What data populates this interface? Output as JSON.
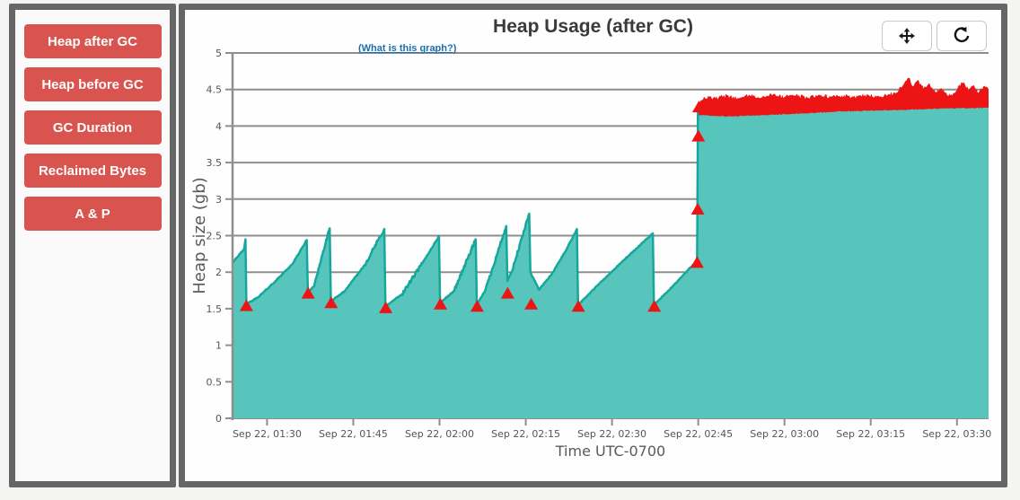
{
  "sidebar": {
    "button_color": "#d9534f",
    "buttons": [
      {
        "label": "Heap after GC"
      },
      {
        "label": "Heap before GC"
      },
      {
        "label": "GC Duration"
      },
      {
        "label": "Reclaimed Bytes"
      },
      {
        "label": "A & P"
      }
    ]
  },
  "toolbar": {
    "pan_icon": "move-arrows",
    "refresh_icon": "refresh-arrow"
  },
  "chart_data": {
    "type": "area",
    "title": "Heap Usage (after GC)",
    "help_link": "(What is this graph?)",
    "xlabel": "Time UTC-0700",
    "ylabel": "Heap size (gb)",
    "ylim": [
      0,
      5
    ],
    "yticks": [
      0,
      0.5,
      1,
      1.5,
      2,
      2.5,
      3,
      3.5,
      4,
      4.5,
      5
    ],
    "x_domain_minutes": [
      84,
      215.5
    ],
    "xticks": [
      {
        "minute": 90,
        "label": "Sep 22, 01:30"
      },
      {
        "minute": 105,
        "label": "Sep 22, 01:45"
      },
      {
        "minute": 120,
        "label": "Sep 22, 02:00"
      },
      {
        "minute": 135,
        "label": "Sep 22, 02:15"
      },
      {
        "minute": 150,
        "label": "Sep 22, 02:30"
      },
      {
        "minute": 165,
        "label": "Sep 22, 02:45"
      },
      {
        "minute": 180,
        "label": "Sep 22, 03:00"
      },
      {
        "minute": 195,
        "label": "Sep 22, 03:15"
      },
      {
        "minute": 210,
        "label": "Sep 22, 03:30"
      }
    ],
    "grid": true,
    "grid_color": "#8e8e8e",
    "series": [
      {
        "name": "heap-after-gc",
        "fill_color": "#58c5bd",
        "line_color": "#16a79c",
        "anchors_time_gb": [
          [
            84.0,
            2.13
          ],
          [
            84.6,
            2.19
          ],
          [
            85.3,
            2.25
          ],
          [
            86.0,
            2.31
          ],
          [
            86.25,
            2.45
          ],
          [
            86.4,
            1.56
          ],
          [
            88.5,
            1.66
          ],
          [
            91.5,
            1.88
          ],
          [
            94.5,
            2.12
          ],
          [
            96.9,
            2.44
          ],
          [
            97.1,
            1.73
          ],
          [
            98.1,
            1.8
          ],
          [
            100.9,
            2.6
          ],
          [
            101.1,
            1.6
          ],
          [
            103.5,
            1.74
          ],
          [
            107.0,
            2.1
          ],
          [
            110.4,
            2.59
          ],
          [
            110.6,
            1.53
          ],
          [
            113.5,
            1.7
          ],
          [
            117.0,
            2.12
          ],
          [
            119.9,
            2.49
          ],
          [
            120.1,
            1.58
          ],
          [
            122.5,
            1.74
          ],
          [
            126.3,
            2.45
          ],
          [
            126.5,
            1.55
          ],
          [
            128.0,
            1.76
          ],
          [
            131.6,
            2.63
          ],
          [
            131.8,
            1.88
          ],
          [
            132.6,
            2.01
          ],
          [
            135.6,
            2.8
          ],
          [
            135.8,
            2.0
          ],
          [
            136.7,
            1.86
          ],
          [
            137.3,
            1.76
          ],
          [
            139.5,
            1.97
          ],
          [
            142.0,
            2.3
          ],
          [
            143.9,
            2.59
          ],
          [
            144.1,
            1.55
          ],
          [
            147.5,
            1.82
          ],
          [
            152.0,
            2.16
          ],
          [
            157.1,
            2.53
          ],
          [
            157.3,
            1.55
          ],
          [
            160.0,
            1.76
          ],
          [
            163.0,
            2.01
          ],
          [
            164.8,
            2.16
          ],
          [
            164.95,
            4.2
          ],
          [
            170,
            4.18
          ],
          [
            180,
            4.21
          ],
          [
            190,
            4.25
          ],
          [
            200,
            4.27
          ],
          [
            208,
            4.29
          ],
          [
            215.5,
            4.3
          ]
        ]
      }
    ],
    "gc_markers": {
      "name": "gc-event-triangles",
      "color": "#ec1414",
      "points_time_gb": [
        [
          86.4,
          1.53
        ],
        [
          97.15,
          1.7
        ],
        [
          101.15,
          1.57
        ],
        [
          110.65,
          1.5
        ],
        [
          120.15,
          1.55
        ],
        [
          126.55,
          1.52
        ],
        [
          131.85,
          1.7
        ],
        [
          135.95,
          1.55
        ],
        [
          144.15,
          1.52
        ],
        [
          157.35,
          1.52
        ],
        [
          164.8,
          2.12
        ],
        [
          164.92,
          2.85
        ],
        [
          165.02,
          3.85
        ],
        [
          165.12,
          4.25
        ]
      ]
    },
    "dense_marker_band": {
      "name": "dense-gc-marker-band",
      "color": "#ec1414",
      "top_anchors_time_gb": [
        [
          165.15,
          4.3
        ],
        [
          166,
          4.4
        ],
        [
          168,
          4.38
        ],
        [
          170,
          4.42
        ],
        [
          172,
          4.38
        ],
        [
          174,
          4.42
        ],
        [
          176,
          4.39
        ],
        [
          178,
          4.43
        ],
        [
          180,
          4.4
        ],
        [
          182,
          4.42
        ],
        [
          184,
          4.39
        ],
        [
          186,
          4.43
        ],
        [
          188,
          4.4
        ],
        [
          190,
          4.42
        ],
        [
          192,
          4.4
        ],
        [
          194,
          4.43
        ],
        [
          196,
          4.4
        ],
        [
          198,
          4.43
        ],
        [
          199.5,
          4.46
        ],
        [
          200.8,
          4.58
        ],
        [
          201.6,
          4.66
        ],
        [
          202.4,
          4.54
        ],
        [
          203.2,
          4.63
        ],
        [
          204.2,
          4.51
        ],
        [
          205.2,
          4.59
        ],
        [
          206.2,
          4.47
        ],
        [
          207.2,
          4.51
        ],
        [
          208.2,
          4.44
        ],
        [
          209.2,
          4.42
        ],
        [
          210.2,
          4.54
        ],
        [
          211.2,
          4.6
        ],
        [
          212.0,
          4.49
        ],
        [
          212.8,
          4.55
        ],
        [
          213.8,
          4.46
        ],
        [
          214.6,
          4.54
        ],
        [
          215.5,
          4.5
        ]
      ]
    }
  }
}
